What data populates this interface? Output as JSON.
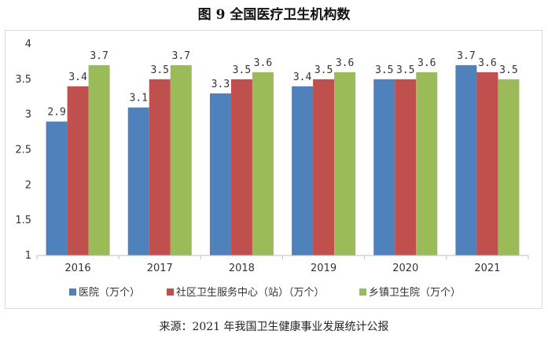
{
  "chart_data": {
    "type": "bar",
    "title": "图 9  全国医疗卫生机构数",
    "categories": [
      "2016",
      "2017",
      "2018",
      "2019",
      "2020",
      "2021"
    ],
    "series": [
      {
        "name": "医院（万个）",
        "values": [
          2.9,
          3.1,
          3.3,
          3.4,
          3.5,
          3.7
        ],
        "labels": [
          "2.9",
          "3.1",
          "3.3",
          "3.4",
          "3.5",
          "3.7"
        ],
        "color": "#4f81bd"
      },
      {
        "name": "社区卫生服务中心（站）（万个）",
        "values": [
          3.4,
          3.5,
          3.5,
          3.5,
          3.5,
          3.6
        ],
        "labels": [
          "3.4",
          "3.5",
          "3.5",
          "3.5",
          "3.5",
          "3.6"
        ],
        "color": "#c0504d"
      },
      {
        "name": "乡镇卫生院（万个）",
        "values": [
          3.7,
          3.7,
          3.6,
          3.6,
          3.6,
          3.5
        ],
        "labels": [
          "3.7",
          "3.7",
          "3.6",
          "3.6",
          "3.6",
          "3.5"
        ],
        "color": "#9bbb59"
      }
    ],
    "ylim": [
      1,
      4
    ],
    "yticks": [
      "1",
      "1.5",
      "2",
      "2.5",
      "3",
      "3.5",
      "4"
    ],
    "grid": false,
    "legend_position": "bottom",
    "source": "来源：2021 年我国卫生健康事业发展统计公报"
  }
}
